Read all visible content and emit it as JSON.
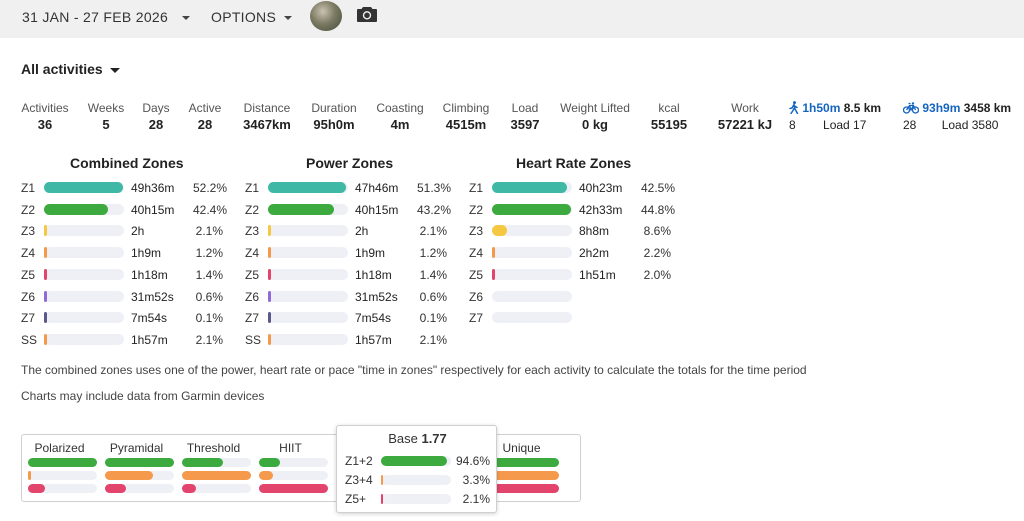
{
  "topbar": {
    "date_range": "31 JAN - 27 FEB 2026",
    "options_label": "OPTIONS"
  },
  "filter": {
    "label": "All activities"
  },
  "stats": [
    {
      "label": "Activities",
      "value": "36"
    },
    {
      "label": "Weeks",
      "value": "5"
    },
    {
      "label": "Days",
      "value": "28"
    },
    {
      "label": "Active",
      "value": "28"
    },
    {
      "label": "Distance",
      "value": "3467km"
    },
    {
      "label": "Duration",
      "value": "95h0m"
    },
    {
      "label": "Coasting",
      "value": "4m"
    },
    {
      "label": "Climbing",
      "value": "4515m"
    },
    {
      "label": "Load",
      "value": "3597"
    },
    {
      "label": "Weight Lifted",
      "value": "0 kg"
    },
    {
      "label": "kcal",
      "value": "55195"
    },
    {
      "label": "Work",
      "value": "57221 kJ"
    }
  ],
  "sports": {
    "walk": {
      "time": "1h50m",
      "distance": "8.5 km",
      "count": "8",
      "load": "Load 17"
    },
    "ride": {
      "time": "93h9m",
      "distance": "3458 km",
      "count": "28",
      "load": "Load 3580"
    }
  },
  "zones": {
    "combined": {
      "title": "Combined Zones",
      "rows": [
        {
          "zone": "Z1",
          "time": "49h36m",
          "pct": "52.2%",
          "fill": 0.985,
          "color": "#3fb8a6"
        },
        {
          "zone": "Z2",
          "time": "40h15m",
          "pct": "42.4%",
          "fill": 0.8,
          "color": "#3daa3f"
        },
        {
          "zone": "Z3",
          "time": "2h",
          "pct": "2.1%",
          "fill": 0.04,
          "color": "#f5c842"
        },
        {
          "zone": "Z4",
          "time": "1h9m",
          "pct": "1.2%",
          "fill": 0.03,
          "color": "#f59a4c"
        },
        {
          "zone": "Z5",
          "time": "1h18m",
          "pct": "1.4%",
          "fill": 0.03,
          "color": "#e2446c"
        },
        {
          "zone": "Z6",
          "time": "31m52s",
          "pct": "0.6%",
          "fill": 0.015,
          "color": "#8e6bd6"
        },
        {
          "zone": "Z7",
          "time": "7m54s",
          "pct": "0.1%",
          "fill": 0.01,
          "color": "#5a5a8a"
        },
        {
          "zone": "SS",
          "time": "1h57m",
          "pct": "2.1%",
          "fill": 0.04,
          "color": "#f59a4c"
        }
      ]
    },
    "power": {
      "title": "Power Zones",
      "rows": [
        {
          "zone": "Z1",
          "time": "47h46m",
          "pct": "51.3%",
          "fill": 0.97,
          "color": "#3fb8a6"
        },
        {
          "zone": "Z2",
          "time": "40h15m",
          "pct": "43.2%",
          "fill": 0.82,
          "color": "#3daa3f"
        },
        {
          "zone": "Z3",
          "time": "2h",
          "pct": "2.1%",
          "fill": 0.04,
          "color": "#f5c842"
        },
        {
          "zone": "Z4",
          "time": "1h9m",
          "pct": "1.2%",
          "fill": 0.03,
          "color": "#f59a4c"
        },
        {
          "zone": "Z5",
          "time": "1h18m",
          "pct": "1.4%",
          "fill": 0.03,
          "color": "#e2446c"
        },
        {
          "zone": "Z6",
          "time": "31m52s",
          "pct": "0.6%",
          "fill": 0.015,
          "color": "#8e6bd6"
        },
        {
          "zone": "Z7",
          "time": "7m54s",
          "pct": "0.1%",
          "fill": 0.01,
          "color": "#5a5a8a"
        },
        {
          "zone": "SS",
          "time": "1h57m",
          "pct": "2.1%",
          "fill": 0.04,
          "color": "#f59a4c"
        }
      ]
    },
    "heart": {
      "title": "Heart Rate Zones",
      "rows": [
        {
          "zone": "Z1",
          "time": "40h23m",
          "pct": "42.5%",
          "fill": 0.935,
          "color": "#3fb8a6"
        },
        {
          "zone": "Z2",
          "time": "42h33m",
          "pct": "44.8%",
          "fill": 0.985,
          "color": "#3daa3f"
        },
        {
          "zone": "Z3",
          "time": "8h8m",
          "pct": "8.6%",
          "fill": 0.19,
          "color": "#f5c842"
        },
        {
          "zone": "Z4",
          "time": "2h2m",
          "pct": "2.2%",
          "fill": 0.04,
          "color": "#f59a4c"
        },
        {
          "zone": "Z5",
          "time": "1h51m",
          "pct": "2.0%",
          "fill": 0.04,
          "color": "#e2446c"
        },
        {
          "zone": "Z6",
          "time": "",
          "pct": "",
          "fill": 0,
          "color": "#8e6bd6"
        },
        {
          "zone": "Z7",
          "time": "",
          "pct": "",
          "fill": 0,
          "color": "#5a5a8a"
        }
      ]
    }
  },
  "notes": {
    "combined": "The combined zones uses one of the power, heart rate or pace \"time in zones\" respectively for each activity to calculate the totals for the time period",
    "garmin": "Charts may include data from Garmin devices"
  },
  "polarization": {
    "columns": [
      {
        "label": "Polarized",
        "fills": [
          1.0,
          0.05,
          0.25
        ]
      },
      {
        "label": "Pyramidal",
        "fills": [
          1.0,
          0.7,
          0.3
        ]
      },
      {
        "label": "Threshold",
        "fills": [
          0.6,
          1.0,
          0.2
        ]
      },
      {
        "label": "HIIT",
        "fills": [
          0.3,
          0.2,
          1.0
        ]
      },
      {
        "label": "",
        "fills": [
          0,
          0,
          0
        ]
      },
      {
        "label": "",
        "fills": [
          0,
          0,
          0
        ]
      },
      {
        "label": "Unique",
        "fills": [
          1.0,
          1.0,
          1.0
        ]
      }
    ],
    "colors": [
      "#3daa3f",
      "#f59a4c",
      "#e2446c"
    ]
  },
  "popup": {
    "title": "Base",
    "value": "1.77",
    "rows": [
      {
        "name": "Z1+2",
        "pct": "94.6%",
        "fill": 0.946,
        "color": "#3daa3f"
      },
      {
        "name": "Z3+4",
        "pct": "3.3%",
        "fill": 0.033,
        "color": "#f59a4c"
      },
      {
        "name": "Z5+",
        "pct": "2.1%",
        "fill": 0.021,
        "color": "#e2446c"
      }
    ]
  }
}
